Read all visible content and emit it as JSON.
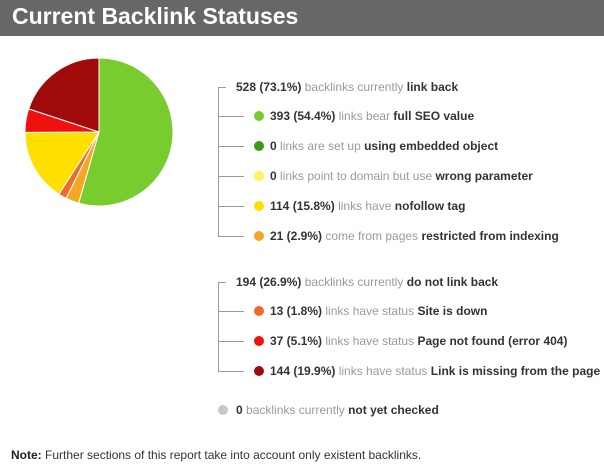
{
  "header": {
    "title": "Current Backlink Statuses"
  },
  "colors": {
    "header_bg": "#676767",
    "tree_line": "#9a9a9a"
  },
  "chart_data": {
    "type": "pie",
    "slices": [
      {
        "label": "full SEO value",
        "value": 393,
        "percent": 54.4,
        "color": "#78cc2e"
      },
      {
        "label": "restricted from indexing",
        "value": 21,
        "percent": 2.9,
        "color": "#f5a623"
      },
      {
        "label": "Site is down",
        "value": 13,
        "percent": 1.8,
        "color": "#f06a2a"
      },
      {
        "label": "nofollow tag",
        "value": 114,
        "percent": 15.8,
        "color": "#ffdf00"
      },
      {
        "label": "Page not found (error 404)",
        "value": 37,
        "percent": 5.1,
        "color": "#f01010"
      },
      {
        "label": "Link is missing from the page",
        "value": 144,
        "percent": 19.9,
        "color": "#a10a0a"
      }
    ]
  },
  "groups": {
    "link_back": {
      "count": "528 (73.1%)",
      "text": "backlinks currently",
      "emph": "link back",
      "items": [
        {
          "color": "#78cc2e",
          "count": "393 (54.4%)",
          "text": "links bear",
          "emph": "full SEO value"
        },
        {
          "color": "#3c9a1a",
          "count": "0",
          "text": "links are set up",
          "emph": "using embedded object"
        },
        {
          "color": "#fff35a",
          "count": "0",
          "text": "links point to domain but use",
          "emph": "wrong parameter"
        },
        {
          "color": "#ffdf00",
          "count": "114 (15.8%)",
          "text": "links have",
          "emph": "nofollow tag"
        },
        {
          "color": "#f5a623",
          "count": "21 (2.9%)",
          "text": "come from pages",
          "emph": "restricted from indexing"
        }
      ]
    },
    "no_link_back": {
      "count": "194 (26.9%)",
      "text": "backlinks currently",
      "emph": "do not link back",
      "items": [
        {
          "color": "#f06a2a",
          "count": "13 (1.8%)",
          "text": "links have status",
          "emph": "Site is down"
        },
        {
          "color": "#f01010",
          "count": "37 (5.1%)",
          "text": "links have status",
          "emph": "Page not found (error 404)"
        },
        {
          "color": "#a10a0a",
          "count": "144 (19.9%)",
          "text": "links have status",
          "emph": "Link is missing from the page"
        }
      ]
    },
    "not_checked": {
      "color": "#c8c8c8",
      "count": "0",
      "text": "backlinks currently",
      "emph": "not yet checked"
    }
  },
  "note": {
    "label": "Note:",
    "text": "Further sections of this report take into account only existent backlinks."
  }
}
